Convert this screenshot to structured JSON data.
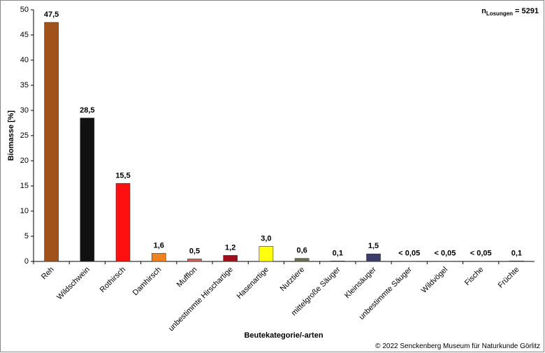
{
  "chart_data": {
    "type": "bar",
    "y_label": "Biomasse [%]",
    "x_label": "Beutekategorie/-arten",
    "annotation": {
      "n": "n",
      "subscript": "Losungen",
      "rest": "= 5291"
    },
    "credit": "© 2022 Senckenberg Museum für Naturkunde Görlitz",
    "categories": [
      "Reh",
      "Wildschwein",
      "Rothirsch",
      "Damhirsch",
      "Mufflon",
      "unbestimmte Hirschartige",
      "Hasenartige",
      "Nutztiere",
      "mittelgroße Säuger",
      "Kleinsäuger",
      "unbestimmte Säuger",
      "Wildvögel",
      "Fische",
      "Früchte"
    ],
    "values": [
      47.5,
      28.5,
      15.5,
      1.6,
      0.5,
      1.2,
      3.0,
      0.6,
      0.1,
      1.5,
      0.05,
      0.05,
      0.05,
      0.1
    ],
    "value_labels": [
      "47,5",
      "28,5",
      "15,5",
      "1,6",
      "0,5",
      "1,2",
      "3,0",
      "0,6",
      "0,1",
      "1,5",
      "< 0,05",
      "< 0,05",
      "< 0,05",
      "0,1"
    ],
    "colors": [
      "#a0521a",
      "#111111",
      "#ff1010",
      "#f0821e",
      "#e06060",
      "#a01018",
      "#ffff10",
      "#6e6e50",
      "#9a6a4a",
      "#3c3c6a",
      "#888888",
      "#888888",
      "#888888",
      "#6a8a3a"
    ],
    "ylim": [
      0,
      50
    ],
    "yticks": [
      0,
      5,
      10,
      15,
      20,
      25,
      30,
      35,
      40,
      45,
      50
    ],
    "grid": false
  }
}
